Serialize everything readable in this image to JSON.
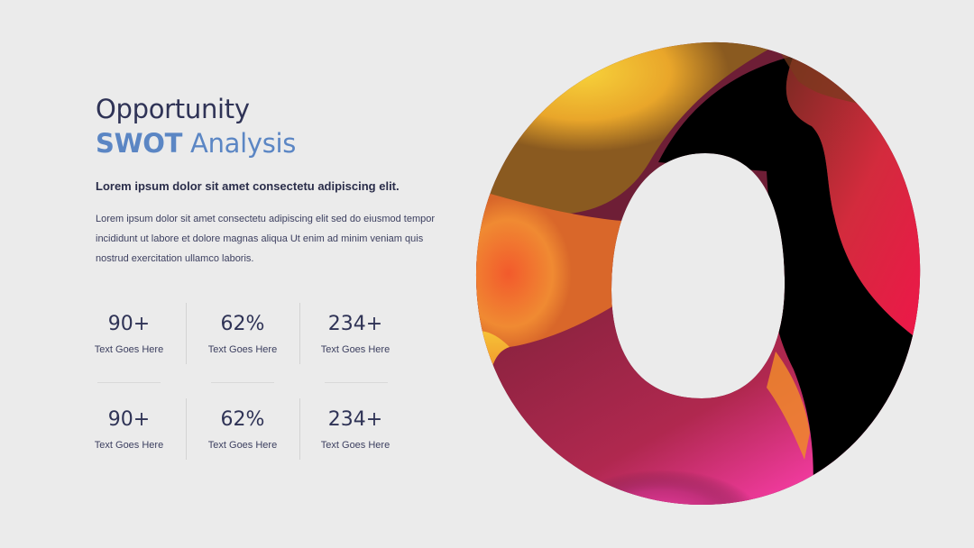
{
  "header": {
    "title_line1": "Opportunity",
    "title_line2_bold": "SWOT",
    "title_line2_rest": " Analysis"
  },
  "content": {
    "subheading": "Lorem ipsum dolor sit amet consectetu adipiscing elit.",
    "body": "Lorem ipsum dolor sit amet consectetu adipiscing elit sed do eiusmod tempor incididunt ut labore et dolore magnas aliqua Ut enim ad minim veniam quis nostrud exercitation ullamco laboris."
  },
  "stats": [
    {
      "value": "90+",
      "label": "Text Goes Here"
    },
    {
      "value": "62%",
      "label": "Text Goes Here"
    },
    {
      "value": "234+",
      "label": "Text Goes Here"
    },
    {
      "value": "90+",
      "label": "Text Goes Here"
    },
    {
      "value": "62%",
      "label": "Text Goes Here"
    },
    {
      "value": "234+",
      "label": "Text Goes Here"
    }
  ],
  "graphic": {
    "icon": "letter-o-gradient-graphic",
    "colors": {
      "orange": "#f0642a",
      "yellow": "#f5c12e",
      "magenta": "#f0339a",
      "red": "#e8173e",
      "maroon": "#6e1e36",
      "black": "#000000",
      "accent_blue": "#5b86c4"
    }
  }
}
